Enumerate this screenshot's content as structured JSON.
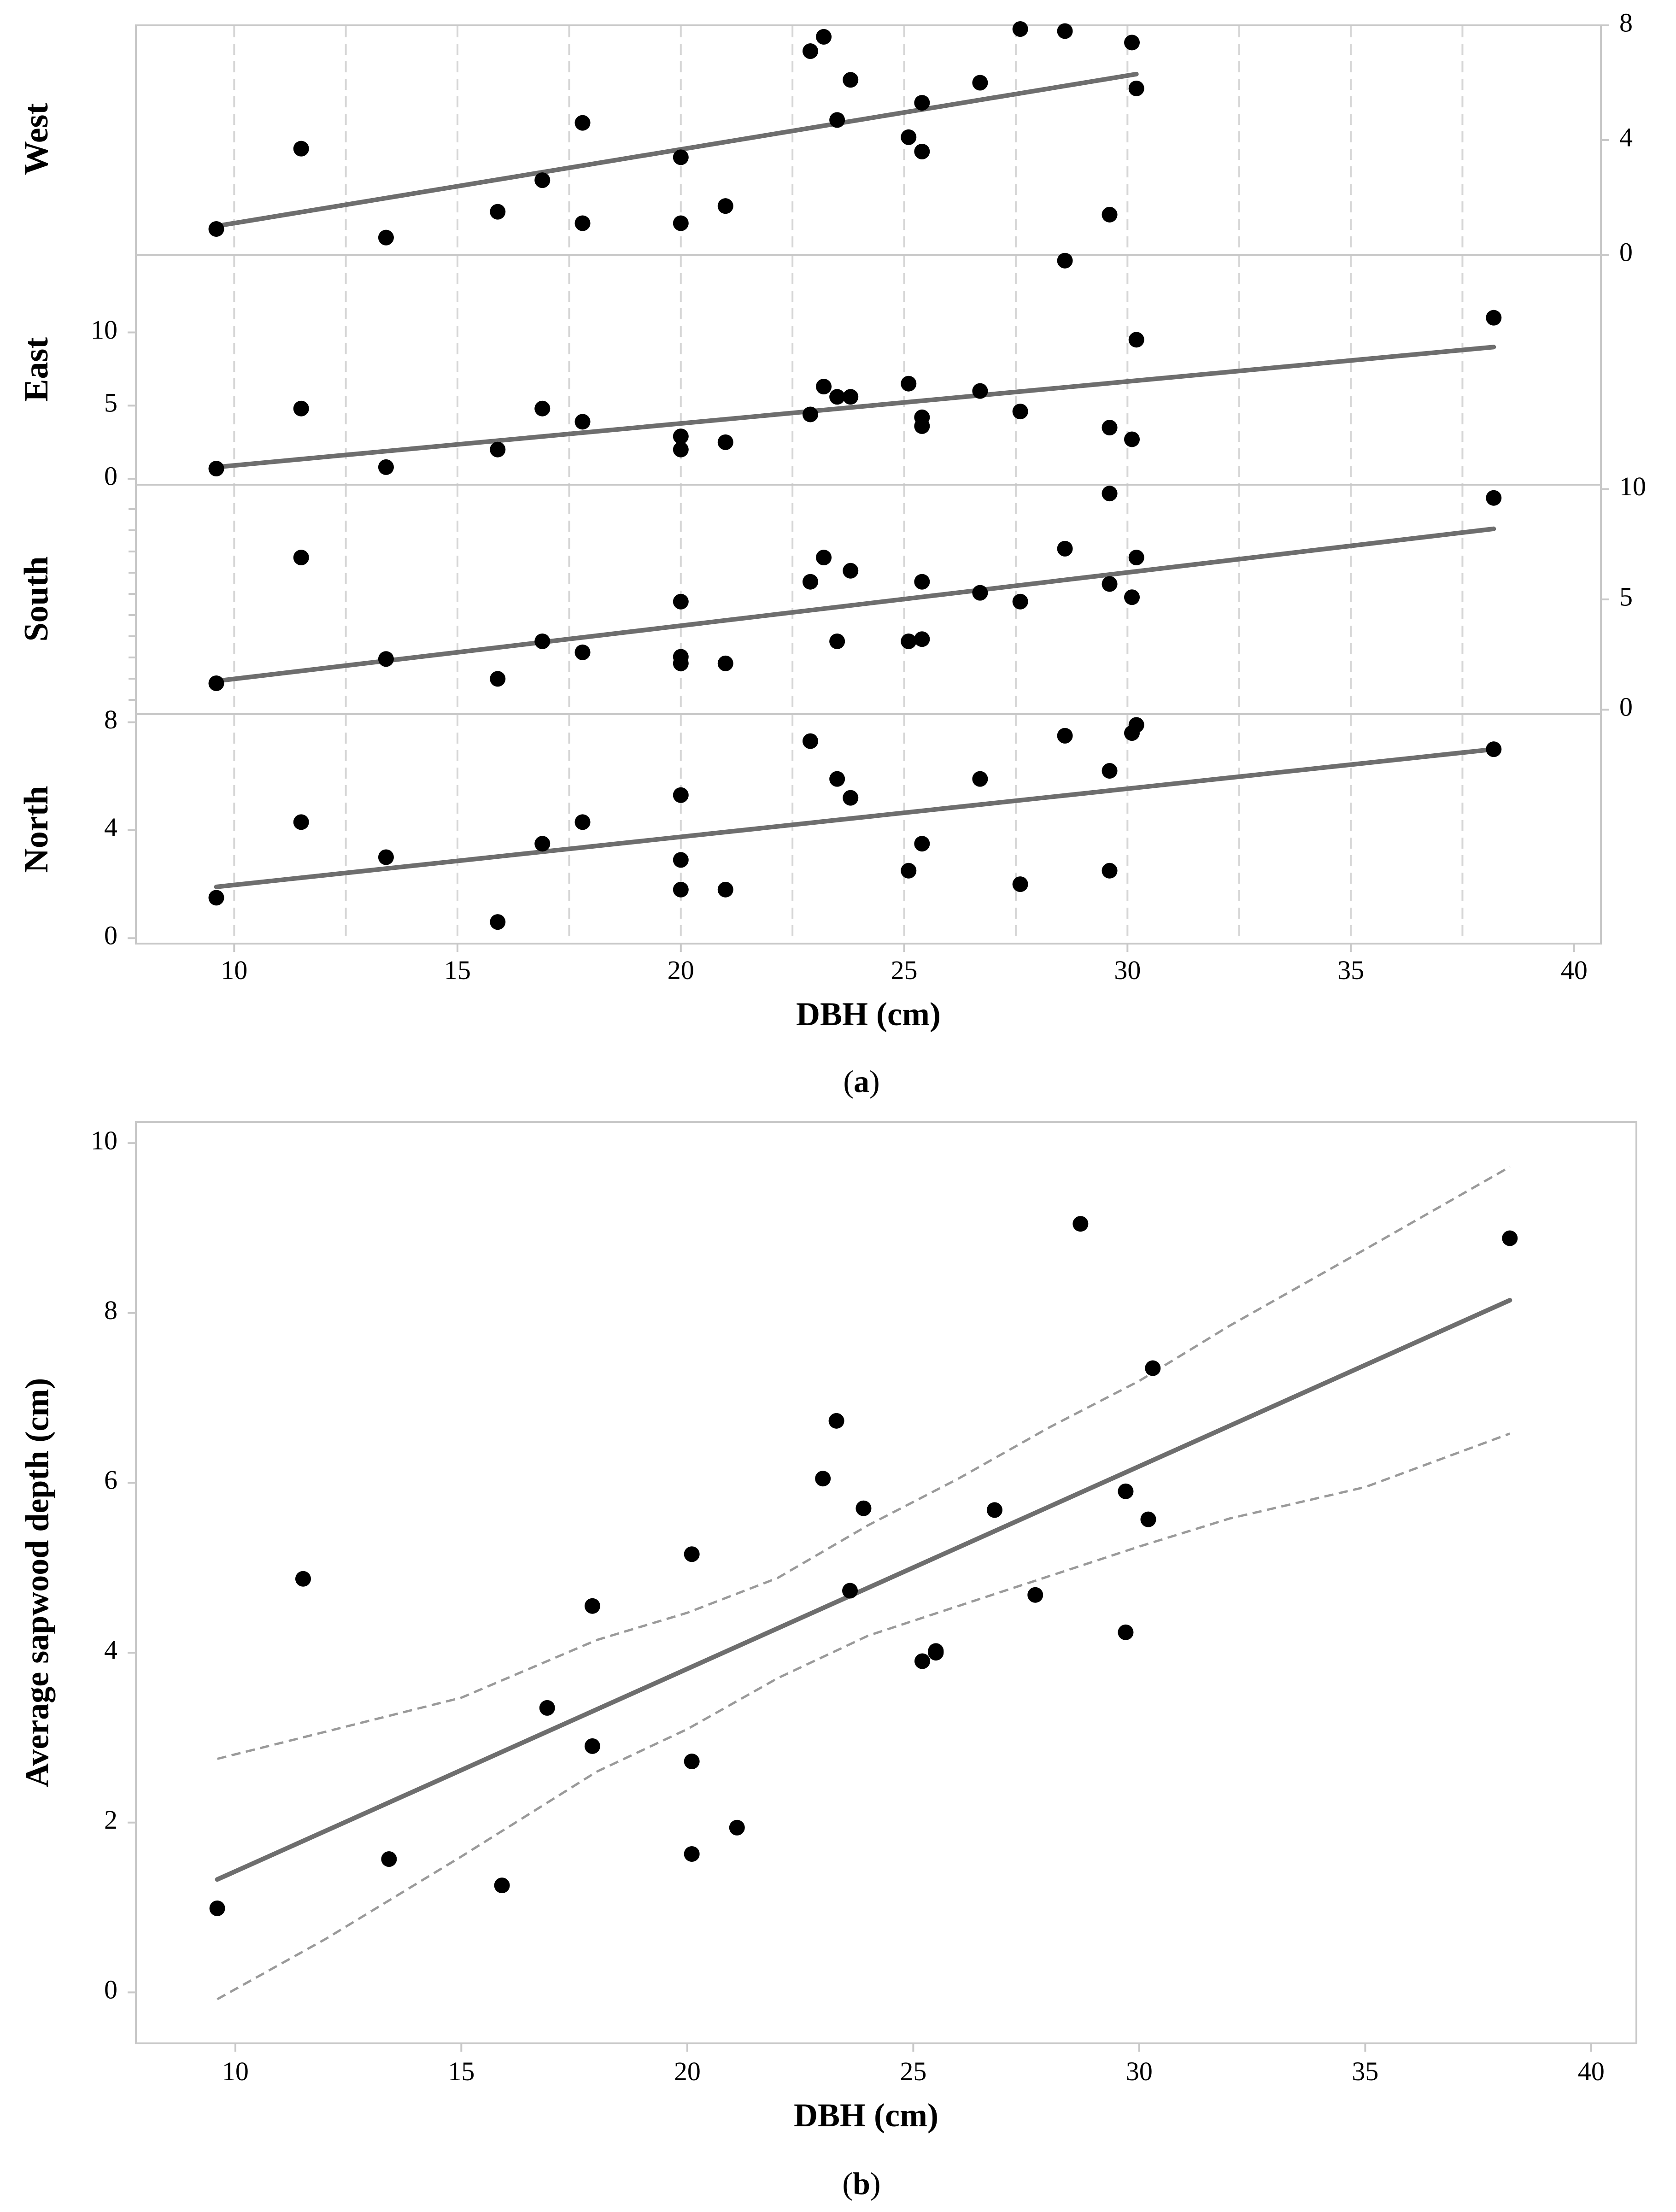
{
  "chart_data": [
    {
      "type": "scatter",
      "panel_label": "a",
      "caption": {
        "open": "(",
        "letter": "a",
        "close": ")"
      },
      "xlabel": "DBH (cm)",
      "xlim": [
        7.8,
        40.6
      ],
      "x_ticks": [
        10,
        15,
        20,
        25,
        30,
        35,
        40
      ],
      "dashed_grid_x": [
        10,
        12.5,
        15,
        17.5,
        20,
        22.5,
        25,
        27.5,
        30,
        32.5,
        35,
        37.5
      ],
      "fit": "linear regression line per facet",
      "facets": [
        {
          "name": "West",
          "axis_side": "right",
          "ylim": [
            0,
            8
          ],
          "y_ticks": [
            0,
            4,
            8
          ],
          "fit_line": {
            "x": [
              9.6,
              30.2
            ],
            "y": [
              1.0,
              6.3
            ]
          },
          "points": {
            "x": [
              9.6,
              11.5,
              13.4,
              15.9,
              16.9,
              17.8,
              17.8,
              20.0,
              20.0,
              21.0,
              22.9,
              23.2,
              23.5,
              23.8,
              25.1,
              25.4,
              25.4,
              26.7,
              27.6,
              28.6,
              29.6,
              30.1,
              30.2
            ],
            "y": [
              0.9,
              3.7,
              0.6,
              1.5,
              2.6,
              1.1,
              4.6,
              1.1,
              3.4,
              1.7,
              7.1,
              7.6,
              4.7,
              6.1,
              4.1,
              3.6,
              5.3,
              6.0,
              7.9,
              7.8,
              1.4,
              7.4,
              5.8
            ]
          }
        },
        {
          "name": "East",
          "axis_side": "left",
          "ylim": [
            -0.4,
            15.3
          ],
          "y_ticks": [
            0,
            5,
            10
          ],
          "fit_line": {
            "x": [
              9.6,
              38.2
            ],
            "y": [
              0.8,
              9.0
            ]
          },
          "points": {
            "x": [
              9.6,
              11.5,
              13.4,
              15.9,
              16.9,
              17.8,
              20.0,
              20.0,
              21.0,
              22.9,
              23.2,
              23.5,
              23.8,
              25.1,
              25.4,
              25.4,
              26.7,
              27.6,
              28.6,
              29.6,
              30.1,
              30.2,
              38.2
            ],
            "y": [
              0.7,
              4.8,
              0.8,
              2.0,
              4.8,
              3.9,
              2.0,
              2.9,
              2.5,
              4.4,
              6.3,
              5.6,
              5.6,
              6.5,
              4.2,
              3.6,
              6.0,
              4.6,
              14.9,
              3.5,
              2.7,
              9.5,
              11.0
            ]
          }
        },
        {
          "name": "South",
          "axis_side": "right",
          "ylim": [
            -0.2,
            10.2
          ],
          "y_ticks": [
            0,
            5,
            10
          ],
          "fit_line": {
            "x": [
              9.6,
              38.2
            ],
            "y": [
              1.3,
              8.2
            ]
          },
          "points": {
            "x": [
              9.6,
              11.5,
              13.4,
              15.9,
              16.9,
              17.8,
              20.0,
              20.0,
              20.0,
              21.0,
              22.9,
              23.2,
              23.5,
              23.8,
              25.1,
              25.4,
              25.4,
              26.7,
              27.6,
              28.6,
              29.6,
              29.6,
              30.1,
              30.2,
              38.2
            ],
            "y": [
              1.2,
              6.9,
              2.3,
              1.4,
              3.1,
              2.6,
              4.9,
              2.1,
              2.4,
              2.1,
              5.8,
              6.9,
              3.1,
              6.3,
              3.1,
              3.2,
              5.8,
              5.3,
              4.9,
              7.3,
              5.7,
              9.8,
              5.1,
              6.9,
              9.6
            ]
          }
        },
        {
          "name": "North",
          "axis_side": "left",
          "ylim": [
            -0.2,
            8.3
          ],
          "y_ticks": [
            0,
            4,
            8
          ],
          "fit_line": {
            "x": [
              9.6,
              38.2
            ],
            "y": [
              1.9,
              7.0
            ]
          },
          "points": {
            "x": [
              9.6,
              11.5,
              13.4,
              15.9,
              16.9,
              17.8,
              20.0,
              20.0,
              20.0,
              21.0,
              22.9,
              23.5,
              23.8,
              25.1,
              25.4,
              26.7,
              27.6,
              28.6,
              29.6,
              29.6,
              30.1,
              30.2,
              38.2
            ],
            "y": [
              1.5,
              4.3,
              3.0,
              0.6,
              3.5,
              4.3,
              5.3,
              2.9,
              1.8,
              1.8,
              7.3,
              5.9,
              5.2,
              2.5,
              3.5,
              5.9,
              2.0,
              7.5,
              2.5,
              6.2,
              7.6,
              7.9,
              7.0
            ]
          }
        }
      ]
    },
    {
      "type": "scatter",
      "panel_label": "b",
      "caption": {
        "open": "(",
        "letter": "b",
        "close": ")"
      },
      "xlabel": "DBH (cm)",
      "ylabel": "Average sapwood depth (cm)",
      "xlim": [
        7.8,
        41.0
      ],
      "ylim": [
        -0.6,
        10.25
      ],
      "x_ticks": [
        10,
        15,
        20,
        25,
        30,
        35,
        40
      ],
      "y_ticks": [
        0,
        2,
        4,
        6,
        8,
        10
      ],
      "regression_line": {
        "x": [
          9.6,
          38.2
        ],
        "y": [
          1.33,
          8.15
        ]
      },
      "confidence_band": {
        "x": [
          9.6,
          12,
          15,
          18,
          20,
          22,
          24,
          26,
          28,
          30,
          32,
          35,
          38.2
        ],
        "upper": [
          2.75,
          3.07,
          3.47,
          4.15,
          4.47,
          4.88,
          5.5,
          6.05,
          6.65,
          7.2,
          7.85,
          8.75,
          9.72
        ],
        "lower": [
          -0.08,
          0.63,
          1.6,
          2.6,
          3.1,
          3.7,
          4.2,
          4.55,
          4.9,
          5.25,
          5.58,
          5.95,
          6.58
        ]
      },
      "points": {
        "x": [
          9.6,
          11.5,
          13.4,
          15.9,
          16.9,
          17.9,
          17.9,
          20.1,
          20.1,
          20.1,
          21.1,
          23.0,
          23.3,
          23.6,
          23.9,
          25.2,
          25.5,
          25.5,
          26.8,
          27.7,
          28.7,
          29.7,
          29.7,
          30.2,
          30.3,
          38.2
        ],
        "y": [
          0.99,
          4.87,
          1.57,
          1.26,
          3.35,
          4.55,
          2.9,
          5.16,
          2.72,
          1.63,
          1.94,
          6.05,
          6.73,
          4.73,
          5.7,
          3.9,
          4.02,
          4.0,
          5.68,
          4.68,
          9.05,
          5.9,
          4.24,
          5.57,
          7.35,
          8.88
        ]
      }
    }
  ]
}
